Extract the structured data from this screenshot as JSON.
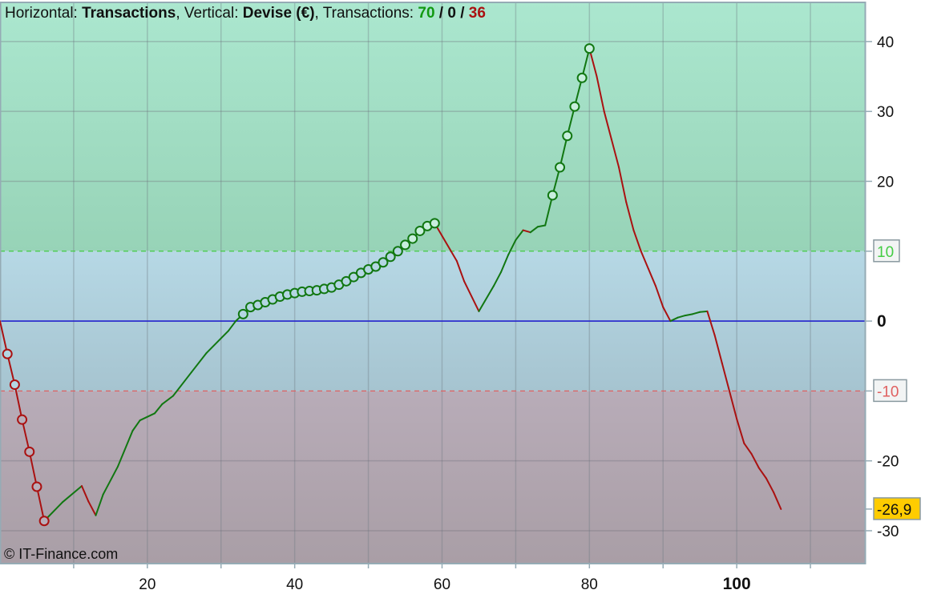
{
  "header": {
    "horizontal_label": "Horizontal: ",
    "horizontal_value": "Transactions",
    "vertical_label": ", Vertical: ",
    "vertical_value": "Devise (€)",
    "transactions_label": ", Transactions: ",
    "count_up": "70",
    "sep1": " / ",
    "count_zero": "0",
    "sep2": " / ",
    "count_down": "36"
  },
  "copyright": "© IT-Finance.com",
  "chart_data": {
    "type": "line",
    "xlabel": "Transactions",
    "ylabel": "Devise (€)",
    "xlim": [
      0,
      117.5
    ],
    "ylim": [
      -34.7,
      45.6
    ],
    "x_ticks": [
      20,
      40,
      60,
      80,
      100
    ],
    "x_tick_labels": [
      "20",
      "40",
      "60",
      "80",
      "100"
    ],
    "y_ticks": [
      40,
      30,
      20,
      0,
      -20,
      -30
    ],
    "y_tick_labels": [
      "40",
      "30",
      "20",
      "0",
      "-20",
      "-30"
    ],
    "grid": true,
    "upper_threshold": {
      "value": 10,
      "label": "10",
      "color": "#44cc44"
    },
    "lower_threshold": {
      "value": -10,
      "label": "-10",
      "color": "#e06060"
    },
    "zero_line_color": "#2222cc",
    "last_value_label": "-26,9",
    "colors": {
      "up": "#117711",
      "down": "#aa1111",
      "last_value_bg": "#ffcc00",
      "zone_high": "#a4e2c8",
      "zone_mid": "#b0d2e0",
      "zone_low": "#b0a6b0"
    },
    "points": [
      [
        0,
        0
      ],
      [
        1,
        -4.7
      ],
      [
        2,
        -9.1
      ],
      [
        3,
        -14.1
      ],
      [
        4,
        -18.7
      ],
      [
        5,
        -23.7
      ],
      [
        6,
        -28.6
      ],
      [
        8.5,
        -25.9
      ],
      [
        11.1,
        -23.6
      ],
      [
        12,
        -25.8
      ],
      [
        13,
        -27.8
      ],
      [
        14,
        -24.8
      ],
      [
        16,
        -20.8
      ],
      [
        18,
        -15.7
      ],
      [
        19,
        -14.2
      ],
      [
        21,
        -13.2
      ],
      [
        22,
        -11.9
      ],
      [
        23.5,
        -10.7
      ],
      [
        26,
        -7.3
      ],
      [
        28,
        -4.6
      ],
      [
        31,
        -1.4
      ],
      [
        32,
        0
      ],
      [
        33,
        1.0
      ],
      [
        34,
        2.0
      ],
      [
        35,
        2.3
      ],
      [
        36,
        2.7
      ],
      [
        37,
        3.1
      ],
      [
        38,
        3.5
      ],
      [
        39,
        3.8
      ],
      [
        40,
        4.0
      ],
      [
        41,
        4.2
      ],
      [
        42,
        4.3
      ],
      [
        43,
        4.4
      ],
      [
        44,
        4.6
      ],
      [
        45,
        4.8
      ],
      [
        46,
        5.2
      ],
      [
        47,
        5.7
      ],
      [
        48,
        6.3
      ],
      [
        49,
        6.9
      ],
      [
        50,
        7.4
      ],
      [
        51,
        7.8
      ],
      [
        52,
        8.4
      ],
      [
        53,
        9.2
      ],
      [
        54,
        10.0
      ],
      [
        55,
        10.9
      ],
      [
        56,
        11.8
      ],
      [
        57,
        12.9
      ],
      [
        58,
        13.6
      ],
      [
        59,
        14.0
      ],
      [
        60,
        12.2
      ],
      [
        62,
        8.6
      ],
      [
        63,
        5.7
      ],
      [
        65,
        1.4
      ],
      [
        67,
        5.0
      ],
      [
        68,
        7.0
      ],
      [
        69,
        9.5
      ],
      [
        70,
        11.6
      ],
      [
        71,
        13.0
      ],
      [
        72,
        12.7
      ],
      [
        73,
        13.5
      ],
      [
        74,
        13.7
      ],
      [
        75,
        18.0
      ],
      [
        76,
        22.0
      ],
      [
        77,
        26.5
      ],
      [
        78,
        30.7
      ],
      [
        79,
        34.8
      ],
      [
        80,
        39.0
      ],
      [
        81,
        35.0
      ],
      [
        82,
        30.0
      ],
      [
        83,
        26.0
      ],
      [
        84,
        22.0
      ],
      [
        85,
        17.0
      ],
      [
        86,
        13.0
      ],
      [
        87,
        10.0
      ],
      [
        88,
        7.5
      ],
      [
        89,
        5.0
      ],
      [
        90,
        2.0
      ],
      [
        91,
        0
      ],
      [
        92,
        0.5
      ],
      [
        93,
        0.8
      ],
      [
        94,
        1.0
      ],
      [
        95,
        1.3
      ],
      [
        96,
        1.4
      ],
      [
        97,
        -2.0
      ],
      [
        98,
        -6.0
      ],
      [
        99,
        -10.0
      ],
      [
        100,
        -14.0
      ],
      [
        101,
        -17.5
      ],
      [
        102,
        -19.0
      ],
      [
        103,
        -21.0
      ],
      [
        104,
        -22.5
      ],
      [
        105,
        -24.5
      ],
      [
        106,
        -26.9
      ]
    ],
    "marker_x": [
      1,
      2,
      3,
      4,
      5,
      6,
      33,
      34,
      35,
      36,
      37,
      38,
      39,
      40,
      41,
      42,
      43,
      44,
      45,
      46,
      47,
      48,
      49,
      50,
      51,
      52,
      53,
      54,
      55,
      56,
      57,
      58,
      59,
      75,
      76,
      77,
      78,
      79,
      80
    ]
  }
}
